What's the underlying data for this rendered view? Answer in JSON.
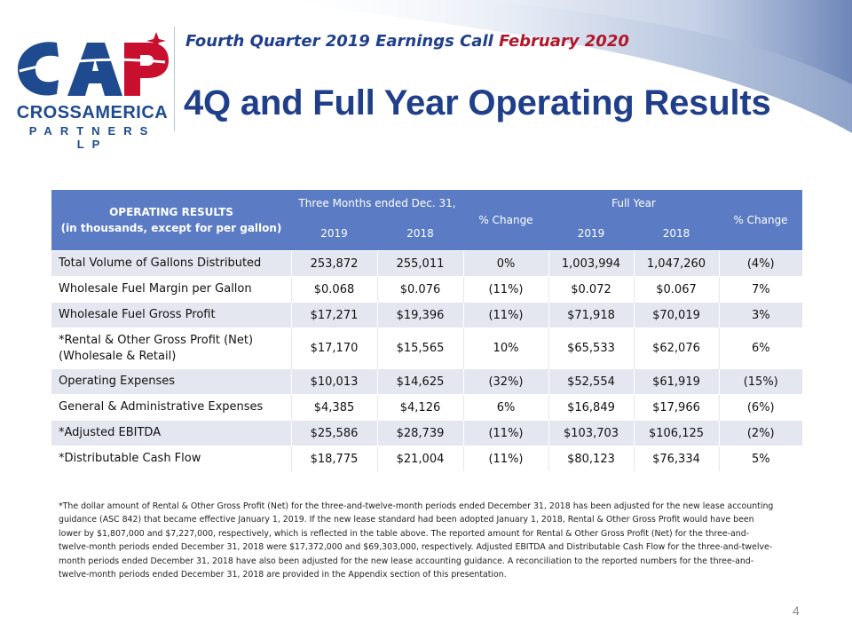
{
  "header": {
    "subtitle_part1": "Fourth Quarter 2019 Earnings Call",
    "subtitle_part2": "February 2020",
    "title": "4Q and Full Year Operating Results"
  },
  "logo": {
    "letters": "CAP",
    "name": "CROSSAMERICA",
    "sub": "PARTNERS LP"
  },
  "colors": {
    "brand_blue": "#1f3f8a",
    "brand_red": "#b0182a",
    "table_header": "#5b7cc4",
    "row_shade": "#e4e7ef"
  },
  "table": {
    "header": {
      "label_line1": "OPERATING RESULTS",
      "label_line2": "(in thousands, except for per gallon)",
      "q_group": "Three Months ended Dec. 31,",
      "q_2019": "2019",
      "q_2018": "2018",
      "pct_change_q": "% Change",
      "fy_group": "Full Year",
      "fy_2019": "2019",
      "fy_2018": "2018",
      "pct_change_fy": "% Change"
    },
    "rows": [
      {
        "label": "Total Volume of Gallons Distributed",
        "q2019": "253,872",
        "q2018": "255,011",
        "qchg": "0%",
        "fy2019": "1,003,994",
        "fy2018": "1,047,260",
        "fychg": "(4%)"
      },
      {
        "label": "Wholesale Fuel Margin per Gallon",
        "q2019": "$0.068",
        "q2018": "$0.076",
        "qchg": "(11%)",
        "fy2019": "$0.072",
        "fy2018": "$0.067",
        "fychg": "7%"
      },
      {
        "label": "Wholesale Fuel Gross Profit",
        "q2019": "$17,271",
        "q2018": "$19,396",
        "qchg": "(11%)",
        "fy2019": "$71,918",
        "fy2018": "$70,019",
        "fychg": "3%"
      },
      {
        "label_line1": "*Rental & Other Gross Profit  (Net)",
        "label_line2": "(Wholesale & Retail)",
        "q2019": "$17,170",
        "q2018": "$15,565",
        "qchg": "10%",
        "fy2019": "$65,533",
        "fy2018": "$62,076",
        "fychg": "6%"
      },
      {
        "label": "Operating Expenses",
        "q2019": "$10,013",
        "q2018": "$14,625",
        "qchg": "(32%)",
        "fy2019": "$52,554",
        "fy2018": "$61,919",
        "fychg": "(15%)"
      },
      {
        "label": "General & Administrative Expenses",
        "q2019": "$4,385",
        "q2018": "$4,126",
        "qchg": "6%",
        "fy2019": "$16,849",
        "fy2018": "$17,966",
        "fychg": "(6%)"
      },
      {
        "label": "*Adjusted EBITDA",
        "q2019": "$25,586",
        "q2018": "$28,739",
        "qchg": "(11%)",
        "fy2019": "$103,703",
        "fy2018": "$106,125",
        "fychg": "(2%)"
      },
      {
        "label": "*Distributable Cash Flow",
        "q2019": "$18,775",
        "q2018": "$21,004",
        "qchg": "(11%)",
        "fy2019": "$80,123",
        "fy2018": "$76,334",
        "fychg": "5%"
      }
    ]
  },
  "footnote": "*The dollar amount of Rental & Other Gross Profit (Net) for the three-and-twelve-month periods ended December 31, 2018 has been adjusted for the new lease accounting guidance (ASC 842) that became effective January 1, 2019. If the new lease standard had been adopted January 1, 2018, Rental & Other Gross Profit would have been lower by $1,807,000 and $7,227,000, respectively, which is reflected in the table above. The reported amount for Rental & Other Gross Profit (Net) for the three-and-twelve-month periods ended December 31, 2018 were $17,372,000 and $69,303,000, respectively. Adjusted EBITDA and Distributable Cash Flow for the three-and-twelve-month periods ended December 31, 2018 have also been adjusted for the new lease accounting guidance. A reconciliation to the reported numbers for the three-and-twelve-month periods ended December 31, 2018 are provided in the Appendix section of this presentation.",
  "page_number": "4"
}
